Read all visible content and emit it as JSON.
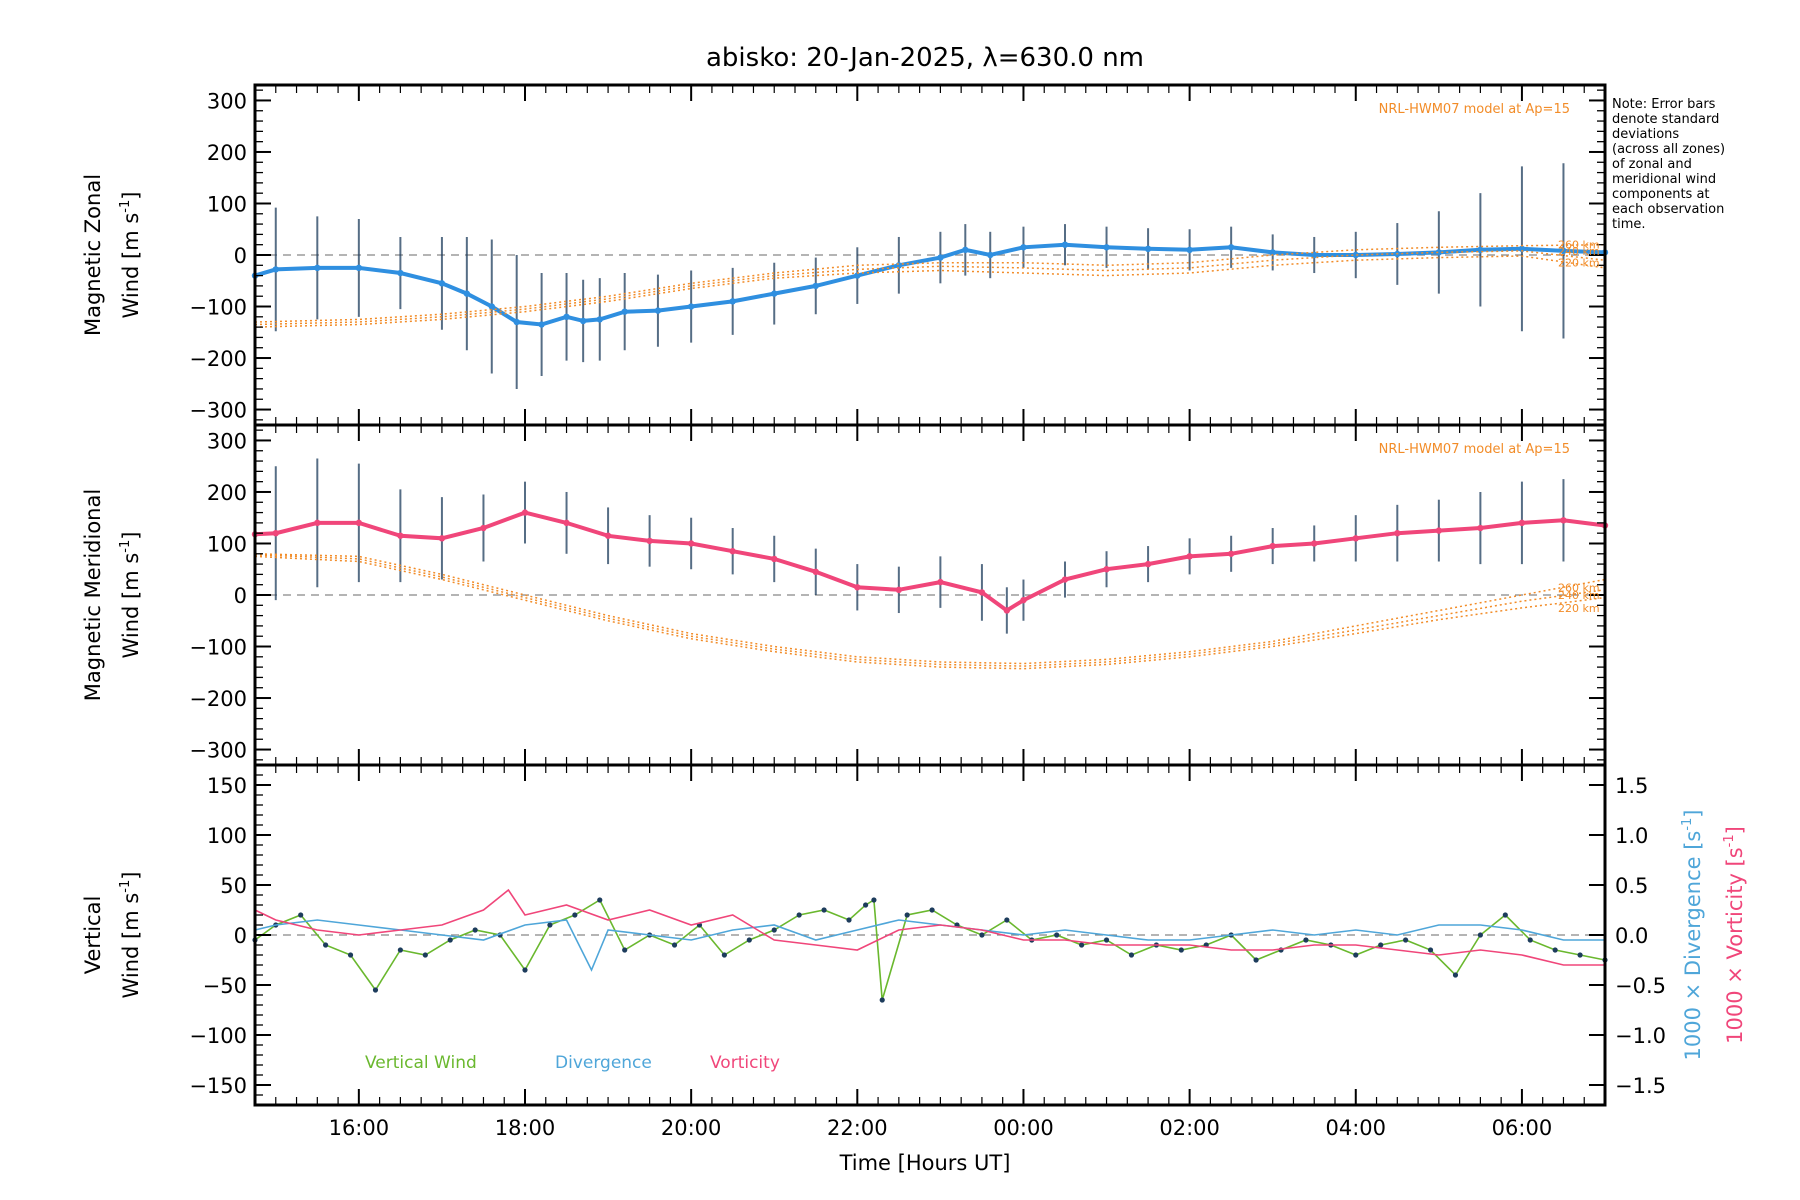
{
  "chart_data": {
    "title": "abisko: 20-Jan-2025, λ=630.0 nm",
    "note": [
      "Note: Error bars",
      "denote standard",
      "deviations",
      "(across all zones)",
      "of zonal and",
      "meridional wind",
      "components at",
      "each observation",
      "time."
    ],
    "x_axis": {
      "label": "Time [Hours UT]",
      "range_hours": [
        14.75,
        31.0
      ],
      "ticks": [
        16,
        18,
        20,
        22,
        24,
        26,
        28,
        30
      ],
      "tick_labels": [
        "16:00",
        "18:00",
        "20:00",
        "22:00",
        "00:00",
        "02:00",
        "04:00",
        "06:00"
      ]
    },
    "panels": [
      {
        "name": "zonal",
        "type": "line",
        "ylabel_line1": "Magnetic Zonal",
        "ylabel_line2": "Wind [m s",
        "ylabel_sup": "-1",
        "ylabel_close": "]",
        "ylim": [
          -330,
          330
        ],
        "yticks": [
          -300,
          -200,
          -100,
          0,
          100,
          200,
          300
        ],
        "ytick_labels": [
          "−300",
          "−200",
          "−100",
          "0",
          "100",
          "200",
          "300"
        ],
        "model_label": "NRL-HWM07 model at Ap=15",
        "altitude_labels": [
          "260 km",
          "240 km",
          "220 km"
        ],
        "series": [
          {
            "name": "Mean zonal wind",
            "color": "#2f8fe0",
            "error_color": "#1d3c5c",
            "x": [
              14.75,
              15.0,
              15.5,
              16.0,
              16.5,
              17.0,
              17.3,
              17.6,
              17.9,
              18.2,
              18.5,
              18.7,
              18.9,
              19.2,
              19.6,
              20.0,
              20.5,
              21.0,
              21.5,
              22.0,
              22.5,
              23.0,
              23.3,
              23.6,
              24.0,
              24.5,
              25.0,
              25.5,
              26.0,
              26.5,
              27.0,
              27.5,
              28.0,
              28.5,
              29.0,
              29.5,
              30.0,
              30.5,
              31.0
            ],
            "y": [
              -40,
              -28,
              -25,
              -25,
              -35,
              -55,
              -75,
              -100,
              -130,
              -135,
              -120,
              -128,
              -125,
              -110,
              -108,
              -100,
              -90,
              -75,
              -60,
              -40,
              -20,
              -5,
              10,
              0,
              15,
              20,
              15,
              12,
              10,
              15,
              5,
              0,
              0,
              2,
              5,
              10,
              12,
              8,
              5
            ],
            "error": [
              120,
              120,
              100,
              95,
              70,
              90,
              110,
              130,
              130,
              100,
              85,
              80,
              80,
              75,
              70,
              70,
              65,
              60,
              55,
              55,
              55,
              50,
              50,
              45,
              40,
              40,
              40,
              40,
              40,
              40,
              35,
              35,
              45,
              60,
              80,
              110,
              160,
              170,
              170
            ]
          },
          {
            "name": "NRL-HWM07 model 260 km",
            "color": "#f28c28",
            "x": [
              14.75,
              16,
              17,
              18,
              19,
              20,
              21,
              22,
              23,
              24,
              25,
              26,
              27,
              28,
              29,
              30,
              31
            ],
            "y": [
              -130,
              -125,
              -115,
              -100,
              -80,
              -55,
              -35,
              -20,
              -15,
              -15,
              -20,
              -15,
              0,
              10,
              15,
              18,
              20
            ]
          },
          {
            "name": "NRL-HWM07 model 240 km",
            "color": "#f28c28",
            "x": [
              14.75,
              16,
              17,
              18,
              19,
              20,
              21,
              22,
              23,
              24,
              25,
              26,
              27,
              28,
              29,
              30,
              31
            ],
            "y": [
              -135,
              -130,
              -120,
              -105,
              -85,
              -60,
              -40,
              -28,
              -22,
              -25,
              -30,
              -25,
              -10,
              0,
              5,
              8,
              -10
            ]
          },
          {
            "name": "NRL-HWM07 model 220 km",
            "color": "#f28c28",
            "x": [
              14.75,
              16,
              17,
              18,
              19,
              20,
              21,
              22,
              23,
              24,
              25,
              26,
              27,
              28,
              29,
              30,
              31
            ],
            "y": [
              -140,
              -135,
              -125,
              -110,
              -90,
              -65,
              -45,
              -35,
              -30,
              -35,
              -40,
              -35,
              -20,
              -10,
              -5,
              -2,
              -25
            ]
          }
        ]
      },
      {
        "name": "meridional",
        "type": "line",
        "ylabel_line1": "Magnetic Meridional",
        "ylabel_line2": "Wind [m s",
        "ylabel_sup": "-1",
        "ylabel_close": "]",
        "ylim": [
          -330,
          330
        ],
        "yticks": [
          -300,
          -200,
          -100,
          0,
          100,
          200,
          300
        ],
        "ytick_labels": [
          "−300",
          "−200",
          "−100",
          "0",
          "100",
          "200",
          "300"
        ],
        "model_label": "NRL-HWM07 model at Ap=15",
        "altitude_labels": [
          "260 km",
          "240 km",
          "220 km"
        ],
        "series": [
          {
            "name": "Mean meridional wind",
            "color": "#f0467a",
            "error_color": "#1d3c5c",
            "x": [
              14.75,
              15.0,
              15.5,
              16.0,
              16.5,
              17.0,
              17.5,
              18.0,
              18.5,
              19.0,
              19.5,
              20.0,
              20.5,
              21.0,
              21.5,
              22.0,
              22.5,
              23.0,
              23.5,
              23.8,
              24.0,
              24.5,
              25.0,
              25.5,
              26.0,
              26.5,
              27.0,
              27.5,
              28.0,
              28.5,
              29.0,
              29.5,
              30.0,
              30.5,
              31.0
            ],
            "y": [
              118,
              120,
              140,
              140,
              115,
              110,
              130,
              160,
              140,
              115,
              105,
              100,
              85,
              70,
              45,
              15,
              10,
              25,
              5,
              -30,
              -10,
              30,
              50,
              60,
              75,
              80,
              95,
              100,
              110,
              120,
              125,
              130,
              140,
              145,
              135
            ],
            "error": [
              120,
              130,
              125,
              115,
              90,
              80,
              65,
              60,
              60,
              55,
              50,
              50,
              45,
              45,
              45,
              45,
              45,
              50,
              55,
              45,
              40,
              35,
              35,
              35,
              35,
              35,
              35,
              35,
              45,
              55,
              60,
              70,
              80,
              80,
              80
            ]
          },
          {
            "name": "NRL-HWM07 model 260 km",
            "color": "#f28c28",
            "x": [
              14.75,
              16,
              17,
              18,
              19,
              20,
              21,
              22,
              23,
              24,
              25,
              26,
              27,
              28,
              29,
              30,
              31
            ],
            "y": [
              80,
              75,
              40,
              0,
              -40,
              -75,
              -100,
              -120,
              -130,
              -133,
              -125,
              -110,
              -90,
              -60,
              -30,
              0,
              30
            ]
          },
          {
            "name": "NRL-HWM07 model 240 km",
            "color": "#f28c28",
            "x": [
              14.75,
              16,
              17,
              18,
              19,
              20,
              21,
              22,
              23,
              24,
              25,
              26,
              27,
              28,
              29,
              30,
              31
            ],
            "y": [
              78,
              70,
              35,
              -5,
              -45,
              -80,
              -105,
              -125,
              -135,
              -138,
              -130,
              -115,
              -95,
              -68,
              -40,
              -12,
              10
            ]
          },
          {
            "name": "NRL-HWM07 model 220 km",
            "color": "#f28c28",
            "x": [
              14.75,
              16,
              17,
              18,
              19,
              20,
              21,
              22,
              23,
              24,
              25,
              26,
              27,
              28,
              29,
              30,
              31
            ],
            "y": [
              75,
              65,
              30,
              -10,
              -50,
              -85,
              -110,
              -130,
              -140,
              -143,
              -135,
              -120,
              -100,
              -75,
              -48,
              -25,
              -5
            ]
          }
        ]
      },
      {
        "name": "vertical",
        "type": "line",
        "ylabel_line1": "Vertical",
        "ylabel_line2": "Wind [m s",
        "ylabel_sup": "-1",
        "ylabel_close": "]",
        "ylim": [
          -170,
          170
        ],
        "yticks": [
          -150,
          -100,
          -50,
          0,
          50,
          100,
          150
        ],
        "ytick_labels": [
          "−150",
          "−100",
          "−50",
          "0",
          "50",
          "100",
          "150"
        ],
        "right_axis": {
          "ylim": [
            -1.7,
            1.7
          ],
          "yticks": [
            -1.5,
            -1.0,
            -0.5,
            0.0,
            0.5,
            1.0,
            1.5
          ],
          "ytick_labels": [
            "−1.5",
            "−1.0",
            "−0.5",
            "0.0",
            "0.5",
            "1.0",
            "1.5"
          ],
          "label_divergence": "1000 × Divergence [s",
          "label_vorticity": "1000 × Vorticity [s",
          "label_sup": "-1",
          "label_close": "]"
        },
        "legend": [
          "Vertical Wind",
          "Divergence",
          "Vorticity"
        ],
        "series": [
          {
            "name": "Vertical Wind",
            "color": "#6ab82e",
            "x": [
              14.75,
              15.0,
              15.3,
              15.6,
              15.9,
              16.2,
              16.5,
              16.8,
              17.1,
              17.4,
              17.7,
              18.0,
              18.3,
              18.6,
              18.9,
              19.2,
              19.5,
              19.8,
              20.1,
              20.4,
              20.7,
              21.0,
              21.3,
              21.6,
              21.9,
              22.1,
              22.2,
              22.3,
              22.6,
              22.9,
              23.2,
              23.5,
              23.8,
              24.1,
              24.4,
              24.7,
              25.0,
              25.3,
              25.6,
              25.9,
              26.2,
              26.5,
              26.8,
              27.1,
              27.4,
              27.7,
              28.0,
              28.3,
              28.6,
              28.9,
              29.2,
              29.5,
              29.8,
              30.1,
              30.4,
              30.7,
              31.0
            ],
            "y": [
              -5,
              10,
              20,
              -10,
              -20,
              -55,
              -15,
              -20,
              -5,
              5,
              0,
              -35,
              10,
              20,
              35,
              -15,
              0,
              -10,
              10,
              -20,
              -5,
              5,
              20,
              25,
              15,
              30,
              35,
              -65,
              20,
              25,
              10,
              0,
              15,
              -5,
              0,
              -10,
              -5,
              -20,
              -10,
              -15,
              -10,
              0,
              -25,
              -15,
              -5,
              -10,
              -20,
              -10,
              -5,
              -15,
              -40,
              0,
              20,
              -5,
              -15,
              -20,
              -25
            ]
          },
          {
            "name": "Divergence",
            "color": "#4fa6d9",
            "x": [
              14.75,
              15.0,
              15.5,
              16.0,
              16.5,
              17.0,
              17.5,
              18.0,
              18.5,
              18.8,
              19.0,
              19.5,
              20.0,
              20.5,
              21.0,
              21.5,
              22.0,
              22.5,
              23.0,
              23.5,
              24.0,
              24.5,
              25.0,
              25.5,
              26.0,
              26.5,
              27.0,
              27.5,
              28.0,
              28.5,
              29.0,
              29.5,
              30.0,
              30.5,
              31.0
            ],
            "y": [
              0.05,
              0.1,
              0.15,
              0.1,
              0.05,
              0.0,
              -0.05,
              0.1,
              0.15,
              -0.35,
              0.05,
              0.0,
              -0.05,
              0.05,
              0.1,
              -0.05,
              0.05,
              0.15,
              0.1,
              0.05,
              0.0,
              0.05,
              0.0,
              -0.05,
              -0.05,
              0.0,
              0.05,
              0.0,
              0.05,
              0.0,
              0.1,
              0.1,
              0.05,
              -0.05,
              -0.05
            ]
          },
          {
            "name": "Vorticity",
            "color": "#f0467a",
            "x": [
              14.75,
              15.0,
              15.5,
              16.0,
              16.5,
              17.0,
              17.5,
              17.8,
              18.0,
              18.5,
              19.0,
              19.5,
              20.0,
              20.5,
              21.0,
              21.5,
              22.0,
              22.5,
              23.0,
              23.5,
              24.0,
              24.5,
              25.0,
              25.5,
              26.0,
              26.5,
              27.0,
              27.5,
              28.0,
              28.5,
              29.0,
              29.5,
              30.0,
              30.5,
              31.0
            ],
            "y": [
              0.25,
              0.15,
              0.05,
              0.0,
              0.05,
              0.1,
              0.25,
              0.45,
              0.2,
              0.3,
              0.15,
              0.25,
              0.1,
              0.2,
              -0.05,
              -0.1,
              -0.15,
              0.05,
              0.1,
              0.05,
              -0.05,
              -0.05,
              -0.1,
              -0.1,
              -0.1,
              -0.15,
              -0.15,
              -0.1,
              -0.1,
              -0.15,
              -0.2,
              -0.15,
              -0.2,
              -0.3,
              -0.3
            ]
          }
        ]
      }
    ]
  }
}
